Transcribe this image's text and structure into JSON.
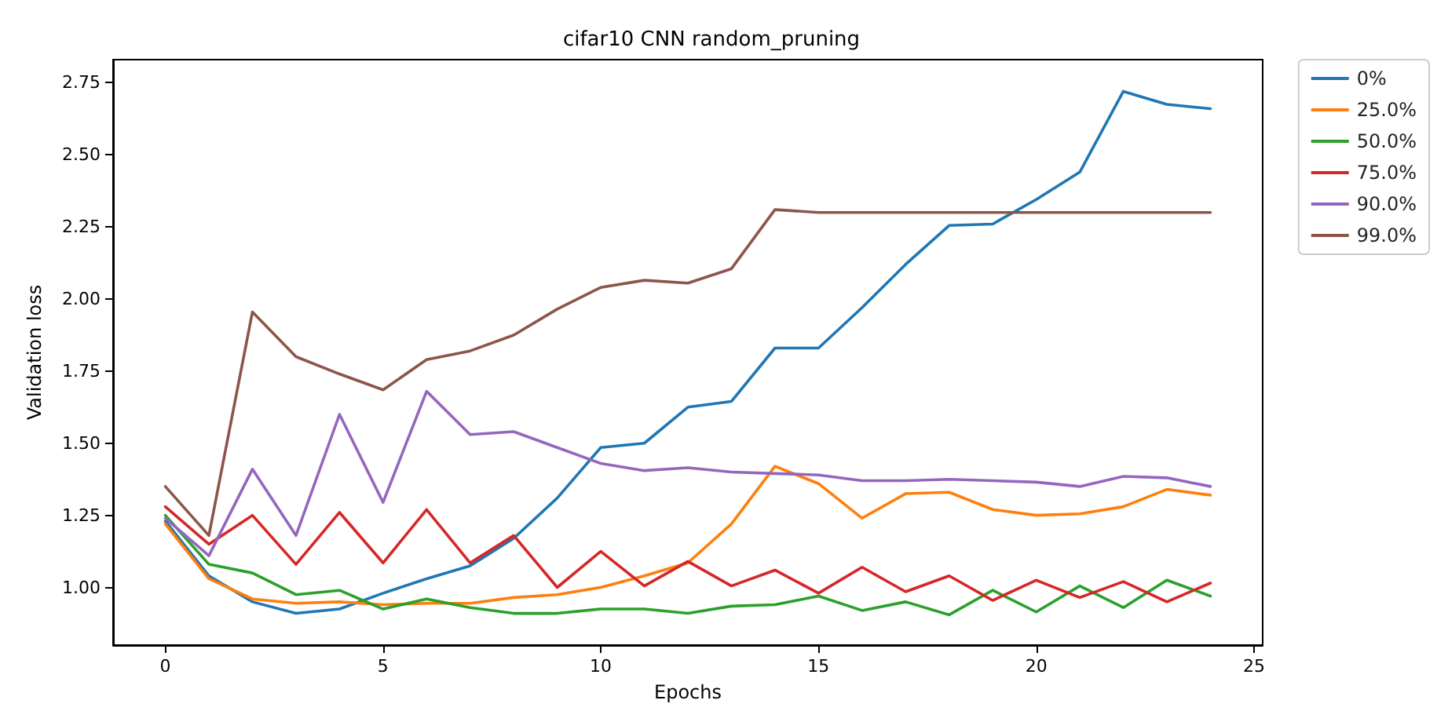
{
  "chart_data": {
    "type": "line",
    "title": "cifar10 CNN random_pruning",
    "xlabel": "Epochs",
    "ylabel": "Validation loss",
    "x": [
      0,
      1,
      2,
      3,
      4,
      5,
      6,
      7,
      8,
      9,
      10,
      11,
      12,
      13,
      14,
      15,
      16,
      17,
      18,
      19,
      20,
      21,
      22,
      23,
      24
    ],
    "series": [
      {
        "name": "0%",
        "color": "#1f77b4",
        "values": [
          1.23,
          1.04,
          0.95,
          0.91,
          0.925,
          0.98,
          1.03,
          1.075,
          1.17,
          1.31,
          1.485,
          1.5,
          1.625,
          1.645,
          1.83,
          1.83,
          1.97,
          2.12,
          2.255,
          2.26,
          2.345,
          2.44,
          2.72,
          2.675,
          2.66
        ]
      },
      {
        "name": "25.0%",
        "color": "#ff7f0e",
        "values": [
          1.22,
          1.03,
          0.96,
          0.945,
          0.95,
          0.94,
          0.945,
          0.945,
          0.965,
          0.975,
          1.0,
          1.04,
          1.085,
          1.22,
          1.42,
          1.36,
          1.24,
          1.325,
          1.33,
          1.27,
          1.25,
          1.255,
          1.28,
          1.34,
          1.32
        ]
      },
      {
        "name": "50.0%",
        "color": "#2ca02c",
        "values": [
          1.25,
          1.08,
          1.05,
          0.975,
          0.99,
          0.925,
          0.96,
          0.93,
          0.91,
          0.91,
          0.925,
          0.925,
          0.91,
          0.935,
          0.94,
          0.97,
          0.92,
          0.95,
          0.905,
          0.99,
          0.915,
          1.005,
          0.93,
          1.025,
          0.97
        ]
      },
      {
        "name": "75.0%",
        "color": "#d62728",
        "values": [
          1.28,
          1.15,
          1.25,
          1.08,
          1.26,
          1.085,
          1.27,
          1.085,
          1.18,
          1.0,
          1.125,
          1.005,
          1.09,
          1.005,
          1.06,
          0.98,
          1.07,
          0.985,
          1.04,
          0.955,
          1.025,
          0.965,
          1.02,
          0.95,
          1.015
        ]
      },
      {
        "name": "90.0%",
        "color": "#9467bd",
        "values": [
          1.24,
          1.11,
          1.41,
          1.18,
          1.6,
          1.295,
          1.68,
          1.53,
          1.54,
          1.485,
          1.43,
          1.405,
          1.415,
          1.4,
          1.395,
          1.39,
          1.37,
          1.37,
          1.375,
          1.37,
          1.365,
          1.35,
          1.385,
          1.38,
          1.35
        ]
      },
      {
        "name": "99.0%",
        "color": "#8c564b",
        "values": [
          1.35,
          1.18,
          1.955,
          1.8,
          1.74,
          1.685,
          1.79,
          1.82,
          1.875,
          1.965,
          2.04,
          2.065,
          2.055,
          2.105,
          2.31,
          2.3,
          2.3,
          2.3,
          2.3,
          2.3,
          2.3,
          2.3,
          2.3,
          2.3,
          2.3
        ]
      }
    ],
    "xlim": [
      -1.2,
      25.2
    ],
    "xticks": [
      0,
      5,
      10,
      15,
      20,
      25
    ],
    "ylim": [
      0.8,
      2.83
    ],
    "yticks": [
      {
        "value": 1,
        "label": "1.00"
      },
      {
        "value": 1.25,
        "label": "1.25"
      },
      {
        "value": 1.5,
        "label": "1.50"
      },
      {
        "value": 1.75,
        "label": "1.75"
      },
      {
        "value": 2,
        "label": "2.00"
      },
      {
        "value": 2.25,
        "label": "2.25"
      },
      {
        "value": 2.5,
        "label": "2.50"
      },
      {
        "value": 2.75,
        "label": "2.75"
      }
    ],
    "grid": false,
    "legend": "top right",
    "line_style": "solid",
    "marker": "none"
  }
}
